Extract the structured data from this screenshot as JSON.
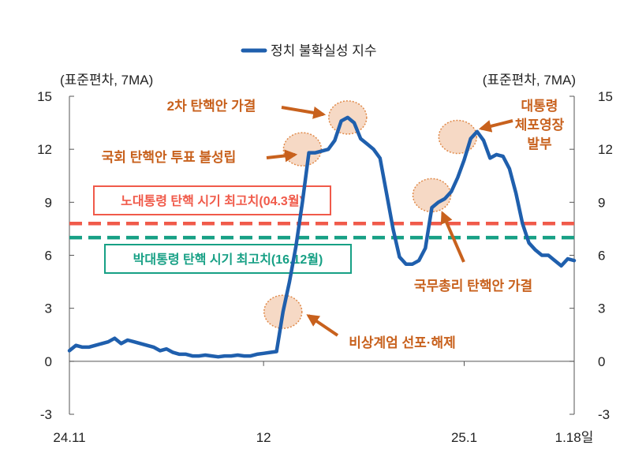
{
  "chart_data": {
    "type": "line",
    "title": "",
    "legend": {
      "label": "정치 불확실성 지수",
      "placement": "top-center"
    },
    "y_unit_left": "(표준편차, 7MA)",
    "y_unit_right": "(표준편차, 7MA)",
    "ylim": [
      -3,
      15
    ],
    "yticks": [
      "-3",
      "0",
      "3",
      "6",
      "9",
      "12",
      "15"
    ],
    "x_ticks": [
      "24.11",
      "12",
      "25.1",
      "1.18일"
    ],
    "x_range": [
      "2024-11-01",
      "2025-01-18"
    ],
    "series": [
      {
        "name": "정치 불확실성 지수",
        "color": "#1f5fad",
        "points": [
          [
            "2024-11-01",
            0.6
          ],
          [
            "2024-11-02",
            0.9
          ],
          [
            "2024-11-03",
            0.8
          ],
          [
            "2024-11-04",
            0.8
          ],
          [
            "2024-11-05",
            0.9
          ],
          [
            "2024-11-06",
            1.0
          ],
          [
            "2024-11-07",
            1.1
          ],
          [
            "2024-11-08",
            1.3
          ],
          [
            "2024-11-09",
            1.0
          ],
          [
            "2024-11-10",
            1.2
          ],
          [
            "2024-11-11",
            1.1
          ],
          [
            "2024-11-12",
            1.0
          ],
          [
            "2024-11-13",
            0.9
          ],
          [
            "2024-11-14",
            0.8
          ],
          [
            "2024-11-15",
            0.6
          ],
          [
            "2024-11-16",
            0.7
          ],
          [
            "2024-11-17",
            0.5
          ],
          [
            "2024-11-18",
            0.4
          ],
          [
            "2024-11-19",
            0.4
          ],
          [
            "2024-11-20",
            0.3
          ],
          [
            "2024-11-21",
            0.3
          ],
          [
            "2024-11-22",
            0.35
          ],
          [
            "2024-11-23",
            0.3
          ],
          [
            "2024-11-24",
            0.25
          ],
          [
            "2024-11-25",
            0.3
          ],
          [
            "2024-11-26",
            0.3
          ],
          [
            "2024-11-27",
            0.35
          ],
          [
            "2024-11-28",
            0.3
          ],
          [
            "2024-11-29",
            0.3
          ],
          [
            "2024-11-30",
            0.4
          ],
          [
            "2024-12-01",
            0.45
          ],
          [
            "2024-12-02",
            0.5
          ],
          [
            "2024-12-03",
            0.55
          ],
          [
            "2024-12-04",
            2.8
          ],
          [
            "2024-12-05",
            4.5
          ],
          [
            "2024-12-06",
            6.5
          ],
          [
            "2024-12-07",
            9.0
          ],
          [
            "2024-12-08",
            11.8
          ],
          [
            "2024-12-09",
            11.8
          ],
          [
            "2024-12-10",
            11.9
          ],
          [
            "2024-12-11",
            12.0
          ],
          [
            "2024-12-12",
            12.5
          ],
          [
            "2024-12-13",
            13.6
          ],
          [
            "2024-12-14",
            13.8
          ],
          [
            "2024-12-15",
            13.5
          ],
          [
            "2024-12-16",
            12.6
          ],
          [
            "2024-12-17",
            12.3
          ],
          [
            "2024-12-18",
            12.0
          ],
          [
            "2024-12-19",
            11.5
          ],
          [
            "2024-12-20",
            9.5
          ],
          [
            "2024-12-21",
            7.5
          ],
          [
            "2024-12-22",
            5.9
          ],
          [
            "2024-12-23",
            5.5
          ],
          [
            "2024-12-24",
            5.5
          ],
          [
            "2024-12-25",
            5.7
          ],
          [
            "2024-12-26",
            6.4
          ],
          [
            "2024-12-27",
            8.7
          ],
          [
            "2024-12-28",
            9.0
          ],
          [
            "2024-12-29",
            9.2
          ],
          [
            "2024-12-30",
            9.6
          ],
          [
            "2024-12-31",
            10.4
          ],
          [
            "2025-01-01",
            11.4
          ],
          [
            "2025-01-02",
            12.6
          ],
          [
            "2025-01-03",
            13.0
          ],
          [
            "2025-01-04",
            12.5
          ],
          [
            "2025-01-05",
            11.5
          ],
          [
            "2025-01-06",
            11.7
          ],
          [
            "2025-01-07",
            11.6
          ],
          [
            "2025-01-08",
            10.9
          ],
          [
            "2025-01-09",
            9.5
          ],
          [
            "2025-01-10",
            7.8
          ],
          [
            "2025-01-11",
            6.7
          ],
          [
            "2025-01-12",
            6.3
          ],
          [
            "2025-01-13",
            6.0
          ],
          [
            "2025-01-14",
            6.0
          ],
          [
            "2025-01-15",
            5.7
          ],
          [
            "2025-01-16",
            5.4
          ],
          [
            "2025-01-17",
            5.8
          ],
          [
            "2025-01-18",
            5.7
          ]
        ]
      }
    ],
    "reference_lines": [
      {
        "label": "노대통령 탄핵 시기 최고치(04.3월)",
        "value": 7.8,
        "color": "#f05a4a",
        "style": "dashed"
      },
      {
        "label": "박대통령 탄핵 시기 최고치(16.12월)",
        "value": 7.0,
        "color": "#17a085",
        "style": "dashed"
      }
    ],
    "annotations": [
      {
        "text": "비상계엄 선포·해제",
        "date": "2024-12-04",
        "value": 2.8
      },
      {
        "text": "국회 탄핵안 투표 불성립",
        "date": "2024-12-07",
        "value": 12.0
      },
      {
        "text": "2차 탄핵안 가결",
        "date": "2024-12-14",
        "value": 13.8
      },
      {
        "text": "국무총리 탄핵안 가결",
        "date": "2024-12-27",
        "value": 9.4
      },
      {
        "text": "대통령 체포영장 발부",
        "date": "2024-12-31",
        "value": 12.7
      }
    ],
    "grid": false
  }
}
